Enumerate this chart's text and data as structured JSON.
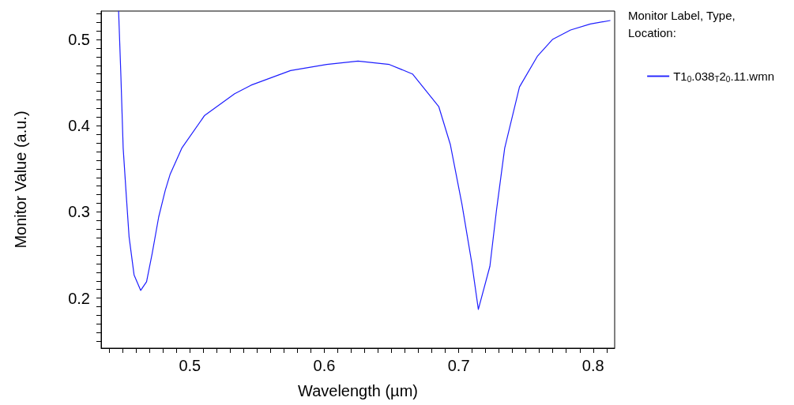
{
  "chart_data": {
    "type": "line",
    "xlabel": "Wavelength (µm)",
    "ylabel": "Monitor Value (a.u.)",
    "legend_title": "Monitor Label, Type, Location:",
    "legend": "right",
    "marker": "none",
    "line_style": "solid",
    "grid": false,
    "xlim": [
      0.434,
      0.816
    ],
    "ylim": [
      0.142,
      0.533
    ],
    "xticks": [
      {
        "value": 0.44,
        "label": null
      },
      {
        "value": 0.45,
        "label": null
      },
      {
        "value": 0.46,
        "label": null
      },
      {
        "value": 0.47,
        "label": null
      },
      {
        "value": 0.48,
        "label": null
      },
      {
        "value": 0.49,
        "label": null
      },
      0.5,
      {
        "value": 0.51,
        "label": null
      },
      {
        "value": 0.52,
        "label": null
      },
      {
        "value": 0.53,
        "label": null
      },
      {
        "value": 0.54,
        "label": null
      },
      {
        "value": 0.55,
        "label": null
      },
      {
        "value": 0.56,
        "label": null
      },
      {
        "value": 0.57,
        "label": null
      },
      {
        "value": 0.58,
        "label": null
      },
      {
        "value": 0.59,
        "label": null
      },
      0.6,
      {
        "value": 0.61,
        "label": null
      },
      {
        "value": 0.62,
        "label": null
      },
      {
        "value": 0.63,
        "label": null
      },
      {
        "value": 0.64,
        "label": null
      },
      {
        "value": 0.65,
        "label": null
      },
      {
        "value": 0.66,
        "label": null
      },
      {
        "value": 0.67,
        "label": null
      },
      {
        "value": 0.68,
        "label": null
      },
      {
        "value": 0.69,
        "label": null
      },
      0.7,
      {
        "value": 0.71,
        "label": null
      },
      {
        "value": 0.72,
        "label": null
      },
      {
        "value": 0.73,
        "label": null
      },
      {
        "value": 0.74,
        "label": null
      },
      {
        "value": 0.75,
        "label": null
      },
      {
        "value": 0.76,
        "label": null
      },
      {
        "value": 0.77,
        "label": null
      },
      {
        "value": 0.78,
        "label": null
      },
      {
        "value": 0.79,
        "label": null
      },
      0.8,
      {
        "value": 0.81,
        "label": null
      }
    ],
    "yticks": [
      {
        "value": 0.15,
        "label": null
      },
      {
        "value": 0.16,
        "label": null
      },
      {
        "value": 0.17,
        "label": null
      },
      {
        "value": 0.18,
        "label": null
      },
      {
        "value": 0.19,
        "label": null
      },
      0.2,
      {
        "value": 0.21,
        "label": null
      },
      {
        "value": 0.22,
        "label": null
      },
      {
        "value": 0.23,
        "label": null
      },
      {
        "value": 0.24,
        "label": null
      },
      {
        "value": 0.25,
        "label": null
      },
      {
        "value": 0.26,
        "label": null
      },
      {
        "value": 0.27,
        "label": null
      },
      {
        "value": 0.28,
        "label": null
      },
      {
        "value": 0.29,
        "label": null
      },
      0.3,
      {
        "value": 0.31,
        "label": null
      },
      {
        "value": 0.32,
        "label": null
      },
      {
        "value": 0.33,
        "label": null
      },
      {
        "value": 0.34,
        "label": null
      },
      {
        "value": 0.35,
        "label": null
      },
      {
        "value": 0.36,
        "label": null
      },
      {
        "value": 0.37,
        "label": null
      },
      {
        "value": 0.38,
        "label": null
      },
      {
        "value": 0.39,
        "label": null
      },
      0.4,
      {
        "value": 0.41,
        "label": null
      },
      {
        "value": 0.42,
        "label": null
      },
      {
        "value": 0.43,
        "label": null
      },
      {
        "value": 0.44,
        "label": null
      },
      {
        "value": 0.45,
        "label": null
      },
      {
        "value": 0.46,
        "label": null
      },
      {
        "value": 0.47,
        "label": null
      },
      {
        "value": 0.48,
        "label": null
      },
      {
        "value": 0.49,
        "label": null
      },
      0.5,
      {
        "value": 0.51,
        "label": null
      },
      {
        "value": 0.52,
        "label": null
      },
      {
        "value": 0.53,
        "label": null
      }
    ],
    "series": [
      {
        "name": "T1$_{0}$.038$_{T}$2$_{0}$.11.wmn",
        "color": "#1f1fff",
        "x": [
          0.447,
          0.4487,
          0.4504,
          0.4528,
          0.4548,
          0.4585,
          0.4634,
          0.4678,
          0.472,
          0.4768,
          0.4817,
          0.4854,
          0.494,
          0.511,
          0.5333,
          0.5455,
          0.5749,
          0.6018,
          0.6251,
          0.6484,
          0.6656,
          0.6852,
          0.6938,
          0.7024,
          0.7097,
          0.7146,
          0.7232,
          0.7281,
          0.7342,
          0.7452,
          0.7587,
          0.7697,
          0.7832,
          0.7979,
          0.8126
        ],
        "values": [
          0.533,
          0.458,
          0.374,
          0.317,
          0.271,
          0.227,
          0.209,
          0.219,
          0.252,
          0.294,
          0.325,
          0.344,
          0.374,
          0.412,
          0.437,
          0.447,
          0.464,
          0.471,
          0.475,
          0.471,
          0.46,
          0.422,
          0.378,
          0.309,
          0.241,
          0.187,
          0.237,
          0.302,
          0.374,
          0.445,
          0.481,
          0.5,
          0.511,
          0.518,
          0.522
        ]
      }
    ]
  }
}
